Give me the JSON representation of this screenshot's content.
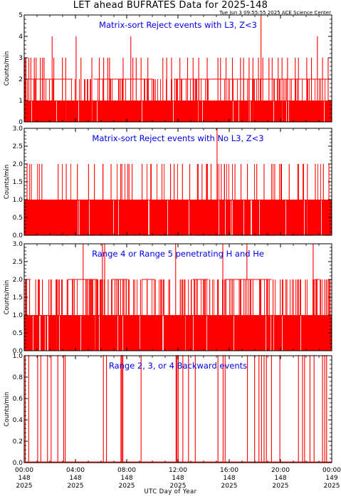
{
  "header": {
    "title": "LET ahead BUFRATES Data for 2025-148",
    "timestamp": "Tue Jun  3 09:55:55 2025 ACE Science Center"
  },
  "colors": {
    "data": "#ff0000",
    "panel_title": "#0000ee",
    "axes": "#000000"
  },
  "chart_data": [
    {
      "type": "bar",
      "title": "Matrix-sort Reject events with L3, Z<3",
      "ylabel": "Counts/min",
      "ylim": [
        0,
        5
      ],
      "yticks": [
        "0",
        "1",
        "2",
        "3",
        "4",
        "5"
      ],
      "spikes": [
        {
          "x": 0.06,
          "y": 3
        },
        {
          "x": 0.14,
          "y": 3
        },
        {
          "x": 0.36,
          "y": 3
        },
        {
          "x": 0.52,
          "y": 3
        },
        {
          "x": 0.79,
          "y": 3
        },
        {
          "x": 0.93,
          "y": 3
        },
        {
          "x": 1.26,
          "y": 3
        },
        {
          "x": 1.43,
          "y": 3
        },
        {
          "x": 1.55,
          "y": 3
        },
        {
          "x": 2.18,
          "y": 4
        },
        {
          "x": 2.31,
          "y": 3
        },
        {
          "x": 2.98,
          "y": 3
        },
        {
          "x": 3.24,
          "y": 3
        },
        {
          "x": 4.05,
          "y": 4
        },
        {
          "x": 4.43,
          "y": 3
        },
        {
          "x": 5.28,
          "y": 3
        },
        {
          "x": 5.86,
          "y": 3
        },
        {
          "x": 6.2,
          "y": 3
        },
        {
          "x": 6.52,
          "y": 3
        },
        {
          "x": 6.66,
          "y": 3
        },
        {
          "x": 7.72,
          "y": 3
        },
        {
          "x": 8.32,
          "y": 4
        },
        {
          "x": 8.48,
          "y": 3
        },
        {
          "x": 8.74,
          "y": 3
        },
        {
          "x": 9.12,
          "y": 3
        },
        {
          "x": 9.65,
          "y": 3
        },
        {
          "x": 10.82,
          "y": 3
        },
        {
          "x": 11.12,
          "y": 3
        },
        {
          "x": 11.5,
          "y": 3
        },
        {
          "x": 12.15,
          "y": 3
        },
        {
          "x": 12.75,
          "y": 3
        },
        {
          "x": 13.18,
          "y": 3
        },
        {
          "x": 13.62,
          "y": 3
        },
        {
          "x": 14.28,
          "y": 3
        },
        {
          "x": 15.12,
          "y": 3
        },
        {
          "x": 15.32,
          "y": 3
        },
        {
          "x": 15.75,
          "y": 3
        },
        {
          "x": 16.25,
          "y": 3
        },
        {
          "x": 16.88,
          "y": 3
        },
        {
          "x": 17.12,
          "y": 3
        },
        {
          "x": 17.55,
          "y": 3
        },
        {
          "x": 17.85,
          "y": 3
        },
        {
          "x": 18.28,
          "y": 3
        },
        {
          "x": 18.48,
          "y": 5
        },
        {
          "x": 18.62,
          "y": 3
        },
        {
          "x": 19.1,
          "y": 3
        },
        {
          "x": 19.35,
          "y": 3
        },
        {
          "x": 19.82,
          "y": 3
        },
        {
          "x": 20.12,
          "y": 3
        },
        {
          "x": 20.55,
          "y": 3
        },
        {
          "x": 21.15,
          "y": 3
        },
        {
          "x": 21.4,
          "y": 3
        },
        {
          "x": 22.05,
          "y": 3
        },
        {
          "x": 22.42,
          "y": 3
        },
        {
          "x": 22.88,
          "y": 4
        },
        {
          "x": 23.28,
          "y": 3
        },
        {
          "x": 23.72,
          "y": 3
        }
      ]
    },
    {
      "type": "bar",
      "title": "Matrix-sort Reject events with No L3, Z<3",
      "ylabel": "Counts/min",
      "ylim": [
        0,
        3
      ],
      "yticks": [
        "0.0",
        "0.5",
        "1.0",
        "1.5",
        "2.0",
        "2.5",
        "3.0"
      ],
      "spikes": [
        {
          "x": 0.22,
          "y": 2
        },
        {
          "x": 0.55,
          "y": 2
        },
        {
          "x": 1.05,
          "y": 2
        },
        {
          "x": 1.38,
          "y": 2
        },
        {
          "x": 2.65,
          "y": 2
        },
        {
          "x": 3.28,
          "y": 2
        },
        {
          "x": 4.15,
          "y": 2
        },
        {
          "x": 5.02,
          "y": 2
        },
        {
          "x": 5.48,
          "y": 2
        },
        {
          "x": 6.15,
          "y": 2
        },
        {
          "x": 6.78,
          "y": 2
        },
        {
          "x": 7.62,
          "y": 2
        },
        {
          "x": 8.18,
          "y": 2
        },
        {
          "x": 8.42,
          "y": 2
        },
        {
          "x": 9.2,
          "y": 2
        },
        {
          "x": 9.88,
          "y": 2
        },
        {
          "x": 10.75,
          "y": 2
        },
        {
          "x": 11.42,
          "y": 2
        },
        {
          "x": 11.7,
          "y": 2
        },
        {
          "x": 12.35,
          "y": 2
        },
        {
          "x": 12.92,
          "y": 2
        },
        {
          "x": 13.52,
          "y": 2
        },
        {
          "x": 13.88,
          "y": 2
        },
        {
          "x": 14.22,
          "y": 2
        },
        {
          "x": 14.58,
          "y": 2
        },
        {
          "x": 15.05,
          "y": 3
        },
        {
          "x": 15.38,
          "y": 2
        },
        {
          "x": 15.62,
          "y": 2
        },
        {
          "x": 16.45,
          "y": 2
        },
        {
          "x": 16.92,
          "y": 2
        },
        {
          "x": 17.42,
          "y": 2
        },
        {
          "x": 18.15,
          "y": 2
        },
        {
          "x": 18.72,
          "y": 2
        },
        {
          "x": 19.55,
          "y": 2
        },
        {
          "x": 20.08,
          "y": 2
        },
        {
          "x": 20.68,
          "y": 2
        },
        {
          "x": 21.35,
          "y": 2
        },
        {
          "x": 22.1,
          "y": 2
        },
        {
          "x": 22.72,
          "y": 2
        },
        {
          "x": 23.35,
          "y": 2
        },
        {
          "x": 23.78,
          "y": 2
        }
      ]
    },
    {
      "type": "bar",
      "title": "Range 4 or Range 5 penetrating H and He",
      "ylabel": "Counts/min",
      "ylim": [
        0,
        3
      ],
      "yticks": [
        "0.0",
        "0.5",
        "1.0",
        "1.5",
        "2.0",
        "2.5",
        "3.0"
      ],
      "spikes": [
        {
          "x": 0.15,
          "y": 2
        },
        {
          "x": 0.42,
          "y": 2
        },
        {
          "x": 0.9,
          "y": 2
        },
        {
          "x": 1.42,
          "y": 2
        },
        {
          "x": 2.05,
          "y": 2
        },
        {
          "x": 2.52,
          "y": 2
        },
        {
          "x": 2.95,
          "y": 2
        },
        {
          "x": 3.35,
          "y": 2
        },
        {
          "x": 3.82,
          "y": 2
        },
        {
          "x": 4.6,
          "y": 3
        },
        {
          "x": 4.88,
          "y": 2
        },
        {
          "x": 5.15,
          "y": 2
        },
        {
          "x": 5.55,
          "y": 2
        },
        {
          "x": 5.75,
          "y": 2
        },
        {
          "x": 5.92,
          "y": 2
        },
        {
          "x": 6.1,
          "y": 3
        },
        {
          "x": 6.28,
          "y": 3
        },
        {
          "x": 6.55,
          "y": 2
        },
        {
          "x": 7.08,
          "y": 2
        },
        {
          "x": 7.52,
          "y": 2
        },
        {
          "x": 7.98,
          "y": 2
        },
        {
          "x": 8.62,
          "y": 2
        },
        {
          "x": 9.08,
          "y": 2
        },
        {
          "x": 9.6,
          "y": 2
        },
        {
          "x": 10.15,
          "y": 2
        },
        {
          "x": 10.72,
          "y": 2
        },
        {
          "x": 11.28,
          "y": 2
        },
        {
          "x": 11.82,
          "y": 3
        },
        {
          "x": 12.18,
          "y": 2
        },
        {
          "x": 12.55,
          "y": 2
        },
        {
          "x": 13.05,
          "y": 2
        },
        {
          "x": 13.52,
          "y": 2
        },
        {
          "x": 14.0,
          "y": 2
        },
        {
          "x": 14.48,
          "y": 2
        },
        {
          "x": 15.15,
          "y": 2
        },
        {
          "x": 15.5,
          "y": 3
        },
        {
          "x": 15.72,
          "y": 2
        },
        {
          "x": 16.25,
          "y": 2
        },
        {
          "x": 16.78,
          "y": 2
        },
        {
          "x": 17.38,
          "y": 3
        },
        {
          "x": 17.85,
          "y": 2
        },
        {
          "x": 18.42,
          "y": 2
        },
        {
          "x": 18.95,
          "y": 2
        },
        {
          "x": 19.42,
          "y": 2
        },
        {
          "x": 19.98,
          "y": 2
        },
        {
          "x": 20.5,
          "y": 2
        },
        {
          "x": 20.92,
          "y": 2
        },
        {
          "x": 21.4,
          "y": 2
        },
        {
          "x": 21.95,
          "y": 2
        },
        {
          "x": 22.55,
          "y": 3
        },
        {
          "x": 23.1,
          "y": 2
        },
        {
          "x": 23.55,
          "y": 2
        },
        {
          "x": 23.88,
          "y": 2
        }
      ]
    },
    {
      "type": "bar",
      "title": "Range 2, 3, or 4 Backward events",
      "ylabel": "Counts/min",
      "ylim": [
        0,
        1
      ],
      "yticks": [
        "0.0",
        "0.2",
        "0.4",
        "0.6",
        "0.8",
        "1.0"
      ],
      "spikes": [
        {
          "x": 0.08,
          "y": 1
        },
        {
          "x": 0.35,
          "y": 1
        },
        {
          "x": 1.05,
          "y": 1
        },
        {
          "x": 1.3,
          "y": 1
        },
        {
          "x": 1.82,
          "y": 1
        },
        {
          "x": 2.1,
          "y": 1
        },
        {
          "x": 2.62,
          "y": 1
        },
        {
          "x": 3.08,
          "y": 1
        },
        {
          "x": 3.2,
          "y": 1
        },
        {
          "x": 6.18,
          "y": 1
        },
        {
          "x": 6.42,
          "y": 1
        },
        {
          "x": 7.55,
          "y": 1
        },
        {
          "x": 7.62,
          "y": 1
        },
        {
          "x": 7.7,
          "y": 1
        },
        {
          "x": 9.12,
          "y": 1
        },
        {
          "x": 11.85,
          "y": 1
        },
        {
          "x": 11.92,
          "y": 1
        },
        {
          "x": 12.02,
          "y": 1
        },
        {
          "x": 12.38,
          "y": 1
        },
        {
          "x": 12.82,
          "y": 1
        },
        {
          "x": 13.35,
          "y": 1
        },
        {
          "x": 15.12,
          "y": 1
        },
        {
          "x": 15.52,
          "y": 1
        },
        {
          "x": 15.68,
          "y": 1
        },
        {
          "x": 17.42,
          "y": 1
        },
        {
          "x": 17.98,
          "y": 1
        },
        {
          "x": 18.32,
          "y": 1
        },
        {
          "x": 18.52,
          "y": 1
        },
        {
          "x": 18.72,
          "y": 1
        },
        {
          "x": 18.9,
          "y": 1
        },
        {
          "x": 19.3,
          "y": 1
        },
        {
          "x": 19.95,
          "y": 1
        },
        {
          "x": 21.4,
          "y": 1
        },
        {
          "x": 21.72,
          "y": 1
        },
        {
          "x": 21.88,
          "y": 1
        },
        {
          "x": 22.3,
          "y": 1
        },
        {
          "x": 22.62,
          "y": 1
        },
        {
          "x": 23.28,
          "y": 1
        },
        {
          "x": 23.45,
          "y": 1
        },
        {
          "x": 23.6,
          "y": 1
        }
      ]
    }
  ],
  "x_axis": {
    "label": "UTC Day of Year",
    "xlim": [
      0,
      24
    ],
    "ticks": [
      {
        "x": 0,
        "time": "00:00",
        "doy": "148",
        "year": "2025"
      },
      {
        "x": 4,
        "time": "04:00",
        "doy": "148",
        "year": "2025"
      },
      {
        "x": 8,
        "time": "08:00",
        "doy": "148",
        "year": "2025"
      },
      {
        "x": 12,
        "time": "12:00",
        "doy": "148",
        "year": "2025"
      },
      {
        "x": 16,
        "time": "16:00",
        "doy": "148",
        "year": "2025"
      },
      {
        "x": 20,
        "time": "20:00",
        "doy": "148",
        "year": "2025"
      },
      {
        "x": 24,
        "time": "00:00",
        "doy": "149",
        "year": "2025"
      }
    ]
  }
}
